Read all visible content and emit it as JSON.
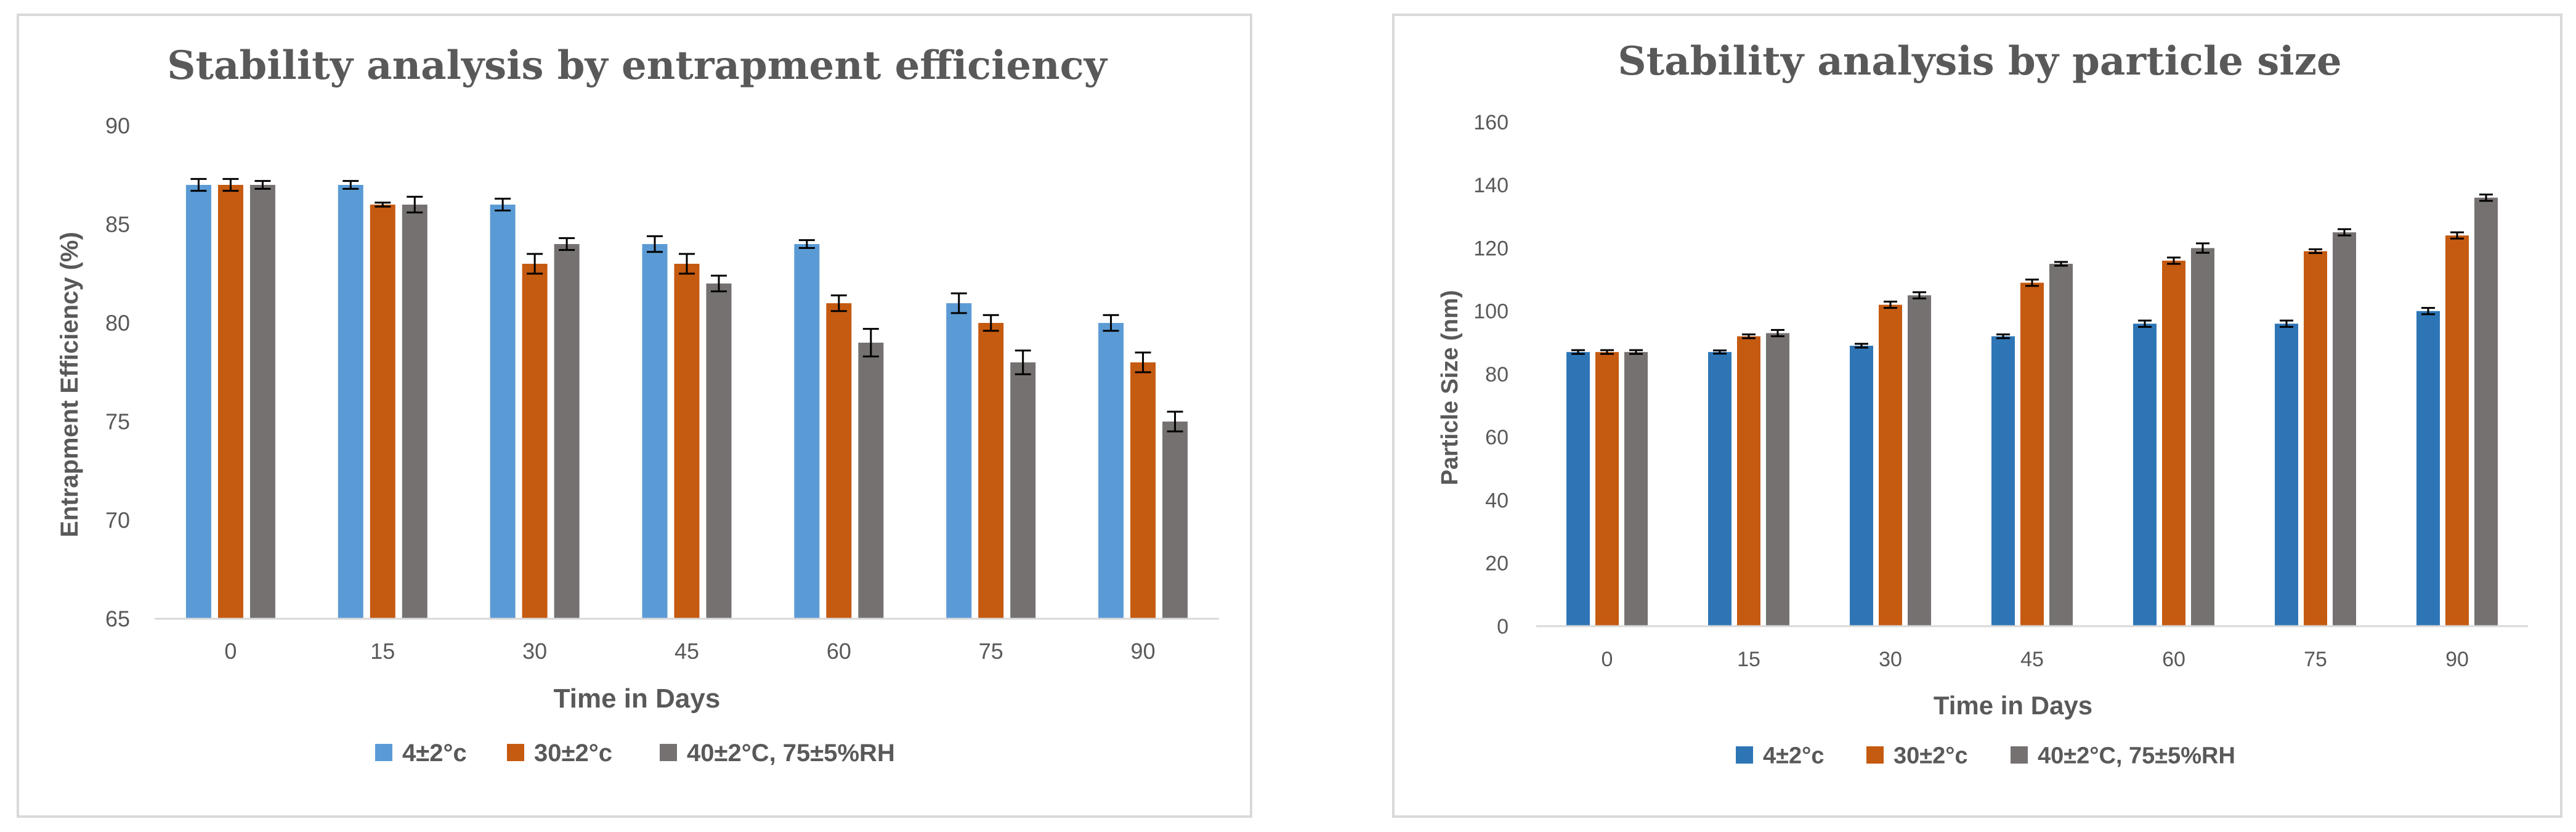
{
  "chart_data": [
    {
      "type": "bar",
      "title": "Stability analysis by entrapment efficiency",
      "xlabel": "Time in Days",
      "ylabel": "Entrapment Efficiency (%)",
      "categories": [
        "0",
        "15",
        "30",
        "45",
        "60",
        "75",
        "90"
      ],
      "ylim": [
        65,
        90
      ],
      "yticks": [
        65,
        70,
        75,
        80,
        85,
        90
      ],
      "grid": false,
      "legend_position": "bottom",
      "series": [
        {
          "name": "4±2°c",
          "color": "#5b9bd5",
          "values": [
            87,
            87,
            86,
            84,
            84,
            81,
            80
          ],
          "errors": [
            0.3,
            0.2,
            0.3,
            0.4,
            0.2,
            0.5,
            0.4
          ]
        },
        {
          "name": "30±2°c",
          "color": "#c55a11",
          "values": [
            87,
            86,
            83,
            83,
            81,
            80,
            78
          ],
          "errors": [
            0.3,
            0.1,
            0.5,
            0.5,
            0.4,
            0.4,
            0.5
          ]
        },
        {
          "name": "40±2°C, 75±5%RH",
          "color": "#767171",
          "values": [
            87,
            86,
            84,
            82,
            79,
            78,
            75
          ],
          "errors": [
            0.2,
            0.4,
            0.3,
            0.4,
            0.7,
            0.6,
            0.5
          ]
        }
      ]
    },
    {
      "type": "bar",
      "title": "Stability analysis by particle size",
      "xlabel": "Time in Days",
      "ylabel": "Particle Size (nm)",
      "categories": [
        "0",
        "15",
        "30",
        "45",
        "60",
        "75",
        "90"
      ],
      "ylim": [
        0,
        160
      ],
      "yticks": [
        0,
        20,
        40,
        60,
        80,
        100,
        120,
        140,
        160
      ],
      "grid": false,
      "legend_position": "bottom",
      "series": [
        {
          "name": "4±2°c",
          "color": "#2e75b6",
          "values": [
            87,
            87,
            89,
            92,
            96,
            96,
            100
          ],
          "errors": [
            0.6,
            0.5,
            0.6,
            0.6,
            1.0,
            1.0,
            1.0
          ]
        },
        {
          "name": "30±2°c",
          "color": "#c55a11",
          "values": [
            87,
            92,
            102,
            109,
            116,
            119,
            124
          ],
          "errors": [
            0.6,
            0.6,
            1.0,
            1.0,
            1.0,
            0.6,
            1.0
          ]
        },
        {
          "name": "40±2°C, 75±5%RH",
          "color": "#767171",
          "values": [
            87,
            93,
            105,
            115,
            120,
            125,
            136
          ],
          "errors": [
            0.6,
            1.0,
            1.0,
            0.6,
            1.5,
            1.0,
            1.0
          ]
        }
      ]
    }
  ]
}
